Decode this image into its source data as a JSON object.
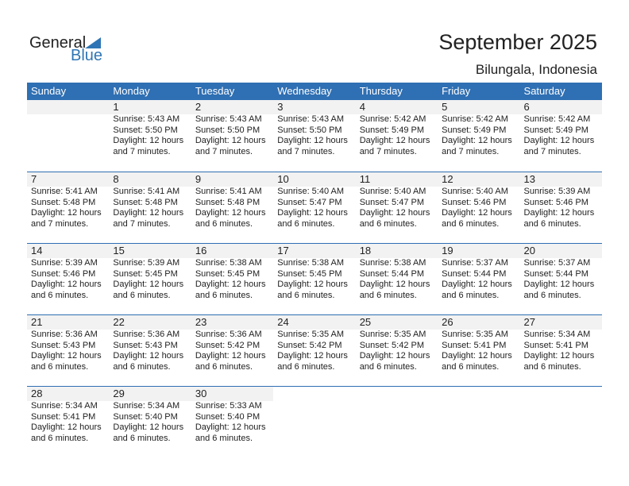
{
  "logo": {
    "general": "General",
    "blue": "Blue"
  },
  "header": {
    "title": "September 2025",
    "location": "Bilungala, Indonesia"
  },
  "colors": {
    "accent": "#2f6fb3",
    "date_bar": "#f2f2f2"
  },
  "weekdays": [
    "Sunday",
    "Monday",
    "Tuesday",
    "Wednesday",
    "Thursday",
    "Friday",
    "Saturday"
  ],
  "first_weekday_index": 1,
  "days": [
    {
      "date": "1",
      "sunrise": "Sunrise: 5:43 AM",
      "sunset": "Sunset: 5:50 PM",
      "daylight1": "Daylight: 12 hours",
      "daylight2": "and 7 minutes."
    },
    {
      "date": "2",
      "sunrise": "Sunrise: 5:43 AM",
      "sunset": "Sunset: 5:50 PM",
      "daylight1": "Daylight: 12 hours",
      "daylight2": "and 7 minutes."
    },
    {
      "date": "3",
      "sunrise": "Sunrise: 5:43 AM",
      "sunset": "Sunset: 5:50 PM",
      "daylight1": "Daylight: 12 hours",
      "daylight2": "and 7 minutes."
    },
    {
      "date": "4",
      "sunrise": "Sunrise: 5:42 AM",
      "sunset": "Sunset: 5:49 PM",
      "daylight1": "Daylight: 12 hours",
      "daylight2": "and 7 minutes."
    },
    {
      "date": "5",
      "sunrise": "Sunrise: 5:42 AM",
      "sunset": "Sunset: 5:49 PM",
      "daylight1": "Daylight: 12 hours",
      "daylight2": "and 7 minutes."
    },
    {
      "date": "6",
      "sunrise": "Sunrise: 5:42 AM",
      "sunset": "Sunset: 5:49 PM",
      "daylight1": "Daylight: 12 hours",
      "daylight2": "and 7 minutes."
    },
    {
      "date": "7",
      "sunrise": "Sunrise: 5:41 AM",
      "sunset": "Sunset: 5:48 PM",
      "daylight1": "Daylight: 12 hours",
      "daylight2": "and 7 minutes."
    },
    {
      "date": "8",
      "sunrise": "Sunrise: 5:41 AM",
      "sunset": "Sunset: 5:48 PM",
      "daylight1": "Daylight: 12 hours",
      "daylight2": "and 7 minutes."
    },
    {
      "date": "9",
      "sunrise": "Sunrise: 5:41 AM",
      "sunset": "Sunset: 5:48 PM",
      "daylight1": "Daylight: 12 hours",
      "daylight2": "and 6 minutes."
    },
    {
      "date": "10",
      "sunrise": "Sunrise: 5:40 AM",
      "sunset": "Sunset: 5:47 PM",
      "daylight1": "Daylight: 12 hours",
      "daylight2": "and 6 minutes."
    },
    {
      "date": "11",
      "sunrise": "Sunrise: 5:40 AM",
      "sunset": "Sunset: 5:47 PM",
      "daylight1": "Daylight: 12 hours",
      "daylight2": "and 6 minutes."
    },
    {
      "date": "12",
      "sunrise": "Sunrise: 5:40 AM",
      "sunset": "Sunset: 5:46 PM",
      "daylight1": "Daylight: 12 hours",
      "daylight2": "and 6 minutes."
    },
    {
      "date": "13",
      "sunrise": "Sunrise: 5:39 AM",
      "sunset": "Sunset: 5:46 PM",
      "daylight1": "Daylight: 12 hours",
      "daylight2": "and 6 minutes."
    },
    {
      "date": "14",
      "sunrise": "Sunrise: 5:39 AM",
      "sunset": "Sunset: 5:46 PM",
      "daylight1": "Daylight: 12 hours",
      "daylight2": "and 6 minutes."
    },
    {
      "date": "15",
      "sunrise": "Sunrise: 5:39 AM",
      "sunset": "Sunset: 5:45 PM",
      "daylight1": "Daylight: 12 hours",
      "daylight2": "and 6 minutes."
    },
    {
      "date": "16",
      "sunrise": "Sunrise: 5:38 AM",
      "sunset": "Sunset: 5:45 PM",
      "daylight1": "Daylight: 12 hours",
      "daylight2": "and 6 minutes."
    },
    {
      "date": "17",
      "sunrise": "Sunrise: 5:38 AM",
      "sunset": "Sunset: 5:45 PM",
      "daylight1": "Daylight: 12 hours",
      "daylight2": "and 6 minutes."
    },
    {
      "date": "18",
      "sunrise": "Sunrise: 5:38 AM",
      "sunset": "Sunset: 5:44 PM",
      "daylight1": "Daylight: 12 hours",
      "daylight2": "and 6 minutes."
    },
    {
      "date": "19",
      "sunrise": "Sunrise: 5:37 AM",
      "sunset": "Sunset: 5:44 PM",
      "daylight1": "Daylight: 12 hours",
      "daylight2": "and 6 minutes."
    },
    {
      "date": "20",
      "sunrise": "Sunrise: 5:37 AM",
      "sunset": "Sunset: 5:44 PM",
      "daylight1": "Daylight: 12 hours",
      "daylight2": "and 6 minutes."
    },
    {
      "date": "21",
      "sunrise": "Sunrise: 5:36 AM",
      "sunset": "Sunset: 5:43 PM",
      "daylight1": "Daylight: 12 hours",
      "daylight2": "and 6 minutes."
    },
    {
      "date": "22",
      "sunrise": "Sunrise: 5:36 AM",
      "sunset": "Sunset: 5:43 PM",
      "daylight1": "Daylight: 12 hours",
      "daylight2": "and 6 minutes."
    },
    {
      "date": "23",
      "sunrise": "Sunrise: 5:36 AM",
      "sunset": "Sunset: 5:42 PM",
      "daylight1": "Daylight: 12 hours",
      "daylight2": "and 6 minutes."
    },
    {
      "date": "24",
      "sunrise": "Sunrise: 5:35 AM",
      "sunset": "Sunset: 5:42 PM",
      "daylight1": "Daylight: 12 hours",
      "daylight2": "and 6 minutes."
    },
    {
      "date": "25",
      "sunrise": "Sunrise: 5:35 AM",
      "sunset": "Sunset: 5:42 PM",
      "daylight1": "Daylight: 12 hours",
      "daylight2": "and 6 minutes."
    },
    {
      "date": "26",
      "sunrise": "Sunrise: 5:35 AM",
      "sunset": "Sunset: 5:41 PM",
      "daylight1": "Daylight: 12 hours",
      "daylight2": "and 6 minutes."
    },
    {
      "date": "27",
      "sunrise": "Sunrise: 5:34 AM",
      "sunset": "Sunset: 5:41 PM",
      "daylight1": "Daylight: 12 hours",
      "daylight2": "and 6 minutes."
    },
    {
      "date": "28",
      "sunrise": "Sunrise: 5:34 AM",
      "sunset": "Sunset: 5:41 PM",
      "daylight1": "Daylight: 12 hours",
      "daylight2": "and 6 minutes."
    },
    {
      "date": "29",
      "sunrise": "Sunrise: 5:34 AM",
      "sunset": "Sunset: 5:40 PM",
      "daylight1": "Daylight: 12 hours",
      "daylight2": "and 6 minutes."
    },
    {
      "date": "30",
      "sunrise": "Sunrise: 5:33 AM",
      "sunset": "Sunset: 5:40 PM",
      "daylight1": "Daylight: 12 hours",
      "daylight2": "and 6 minutes."
    }
  ]
}
